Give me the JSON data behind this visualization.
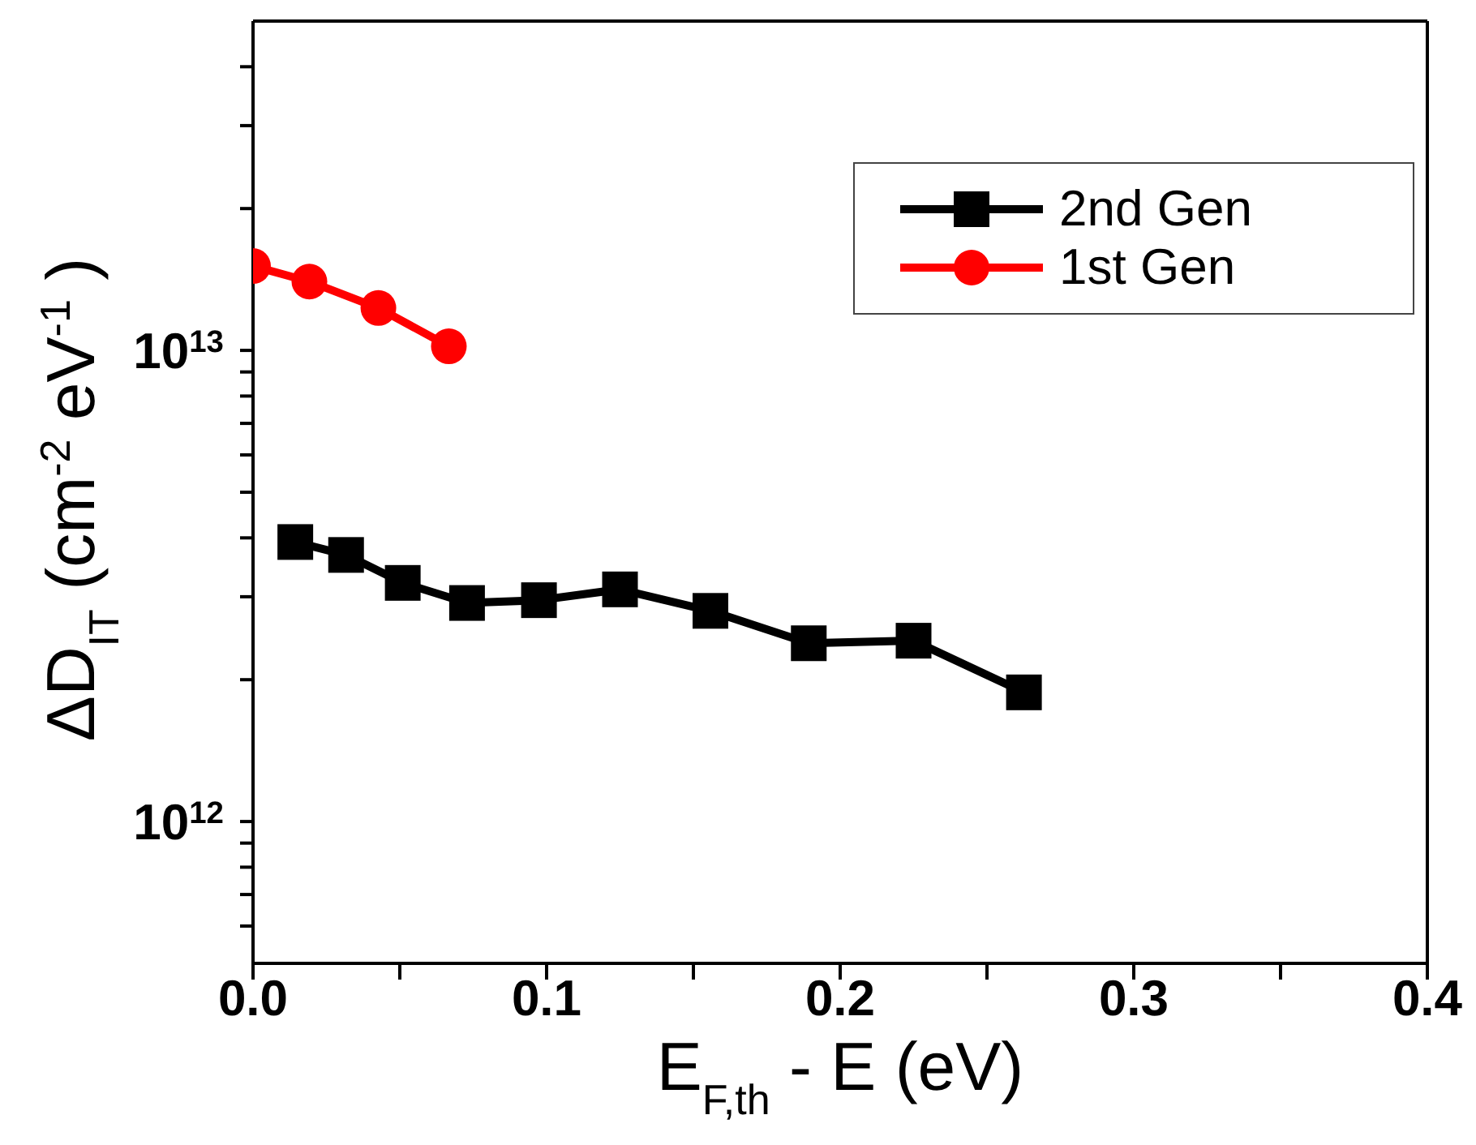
{
  "chart_data": {
    "type": "line",
    "xlabel": "E$_{F,th}$- E (eV)",
    "ylabel": "ΔD$_{IT}$ (cm$^{-2}$ eV$^{-1}$)",
    "log": "y",
    "xlim": [
      0,
      0.4
    ],
    "xticks": [
      "0.0",
      {
        "value": 0.05,
        "label": null
      },
      {
        "value": 0.1,
        "label": "0.1"
      },
      {
        "value": 0.15,
        "label": null
      },
      {
        "value": 0.2,
        "label": "0.2"
      },
      {
        "value": 0.25,
        "label": null
      },
      {
        "value": 0.3,
        "label": "0.3"
      },
      {
        "value": 0.35,
        "label": null
      },
      {
        "value": 0.4,
        "label": "0.4"
      }
    ],
    "ylim": [
      500000000000.0,
      50000000000000.0
    ],
    "yticks": [
      {
        "value": 600000000000.0,
        "label": null
      },
      {
        "value": 700000000000.0,
        "label": null
      },
      {
        "value": 800000000000.0,
        "label": null
      },
      {
        "value": 900000000000.0,
        "label": null
      },
      {
        "value": 1000000000000.0,
        "label": "10$^{12}$"
      },
      {
        "value": 2000000000000.0,
        "label": null
      },
      {
        "value": 3000000000000.0,
        "label": null
      },
      {
        "value": 4000000000000.0,
        "label": null
      },
      {
        "value": 5000000000000.0,
        "label": null
      },
      {
        "value": 6000000000000.0,
        "label": null
      },
      {
        "value": 7000000000000.0,
        "label": null
      },
      {
        "value": 8000000000000.0,
        "label": null
      },
      {
        "value": 9000000000000.0,
        "label": null
      },
      {
        "value": 10000000000000.0,
        "label": "10$^{13}$"
      },
      {
        "value": 20000000000000.0,
        "label": null
      },
      {
        "value": 30000000000000.0,
        "label": null
      },
      {
        "value": 40000000000000.0,
        "label": null
      }
    ],
    "grid": false,
    "legend": "top right",
    "line_style": "solid",
    "series": [
      {
        "name": "2nd Gen",
        "color": "#000000",
        "marker": "square",
        "x": [
          0.0144,
          0.0317,
          0.051,
          0.0729,
          0.0974,
          0.125,
          0.1558,
          0.1893,
          0.225,
          0.2626
        ],
        "values": [
          3920000000000.0,
          3680000000000.0,
          3210000000000.0,
          2910000000000.0,
          2950000000000.0,
          3110000000000.0,
          2800000000000.0,
          2390000000000.0,
          2420000000000.0,
          1880000000000.0
        ]
      },
      {
        "name": "1st Gen",
        "color": "#ff0000",
        "marker": "circle",
        "x": [
          0,
          0.0192,
          0.0427,
          0.0667
        ],
        "values": [
          15100000000000.0,
          14000000000000.0,
          12300000000000.0,
          10200000000000.0
        ]
      }
    ]
  }
}
